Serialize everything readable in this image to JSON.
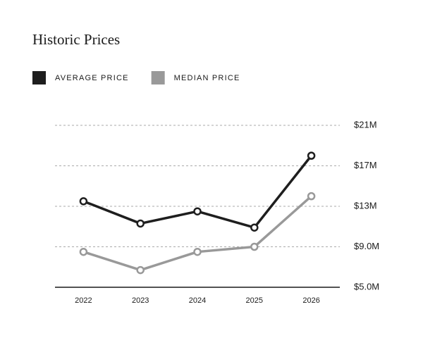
{
  "chart_data": {
    "type": "line",
    "title": "Historic Prices",
    "categories": [
      "2022",
      "2023",
      "2024",
      "2025",
      "2026"
    ],
    "series": [
      {
        "name": "AVERAGE PRICE",
        "color": "#1e1e1e",
        "values": [
          13500000,
          11300000,
          12500000,
          10900000,
          18000000
        ]
      },
      {
        "name": "MEDIAN PRICE",
        "color": "#999999",
        "values": [
          8500000,
          6700000,
          8500000,
          9000000,
          14000000
        ]
      }
    ],
    "ylim": [
      5000000,
      21000000
    ],
    "yticks": [
      {
        "value": 5000000,
        "label": "$5.0M"
      },
      {
        "value": 9000000,
        "label": "$9.0M"
      },
      {
        "value": 13000000,
        "label": "$13M"
      },
      {
        "value": 17000000,
        "label": "$17M"
      },
      {
        "value": 21000000,
        "label": "$21M"
      }
    ],
    "grid": true
  }
}
